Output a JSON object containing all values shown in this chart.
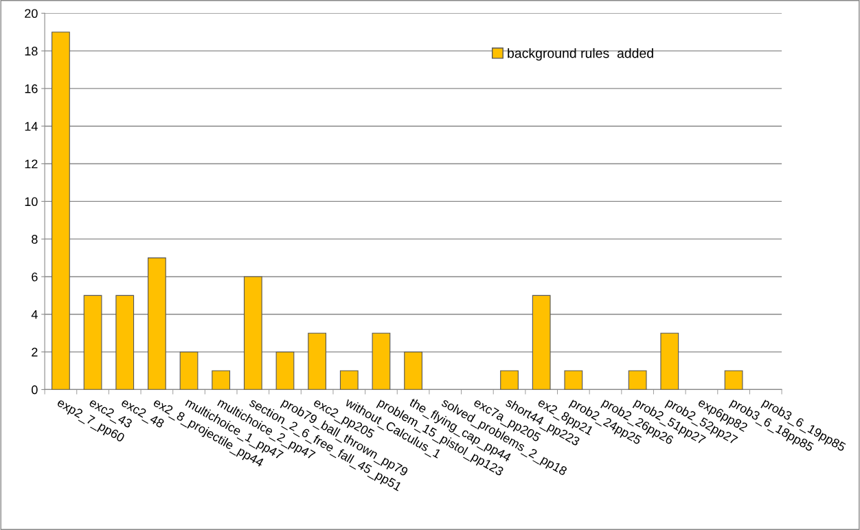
{
  "chart_data": {
    "type": "bar",
    "categories": [
      "exp2_7_pp60",
      "exc2_43",
      "exc2_48",
      "ex2_8_projectile_pp44",
      "multichoice_1_pp47",
      "multichoice_2_pp47",
      "section_2_6_free_fall_45_pp51",
      "prob79_ball_thrown_pp79",
      "exc2_pp205",
      "without_Calculus_1",
      "problem_15_pistol_pp123",
      "the_flying_cap_pp44",
      "solved_problems_2_pp18",
      "exc7a_pp205",
      "short44_pp223",
      "ex2_8pp21",
      "prob2_24pp25",
      "prob2_26pp26",
      "prob2_51pp27",
      "prob2_52pp27",
      "exp6pp82",
      "prob3_6_18pp85",
      "prob3_6_19pp85"
    ],
    "series": [
      {
        "name": "background rules  added",
        "color": "#ffc000",
        "values": [
          19,
          5,
          5,
          7,
          2,
          1,
          6,
          2,
          3,
          1,
          3,
          2,
          0,
          0,
          1,
          5,
          1,
          0,
          1,
          3,
          0,
          1,
          0
        ]
      }
    ],
    "ylim": [
      0,
      20
    ],
    "yticks": [
      0,
      2,
      4,
      6,
      8,
      10,
      12,
      14,
      16,
      18,
      20
    ],
    "grid": "y",
    "legend": "top right"
  }
}
